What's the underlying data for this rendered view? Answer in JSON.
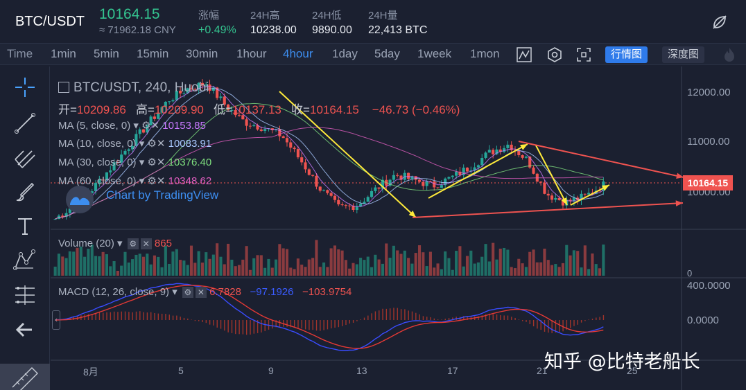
{
  "header": {
    "pair": "BTC/USDT",
    "price": "10164.15",
    "price_cny": "≈ 71962.18 CNY",
    "stats": [
      {
        "label": "涨幅",
        "value": "+0.49%"
      },
      {
        "label": "24H高",
        "value": "10238.00"
      },
      {
        "label": "24H低",
        "value": "9890.00"
      },
      {
        "label": "24H量",
        "value": "22,413 BTC"
      }
    ],
    "icon": "settings-slash-icon"
  },
  "toolbar": {
    "timeframes": [
      "Time",
      "1min",
      "5min",
      "15min",
      "30min",
      "1hour",
      "4hour",
      "1day",
      "5day",
      "1week",
      "1mon"
    ],
    "active_timeframe": "4hour",
    "icons": [
      "indicator-icon",
      "hexagon-settings-icon",
      "fullscreen-icon"
    ],
    "market_chart_label": "行情图",
    "depth_chart_label": "深度图",
    "theme_icon": "flame-icon"
  },
  "side_tools": [
    "crosshair-icon",
    "trend-line-icon",
    "fork-icon",
    "brush-icon",
    "text-icon",
    "pattern-icon",
    "measure-icon",
    "back-arrow-icon",
    "ruler-icon"
  ],
  "chart": {
    "title": "BTC/USDT, 240, Huobi",
    "ohlc": {
      "open_label": "开=",
      "open": "10209.86",
      "high_label": "高=",
      "high": "10209.90",
      "low_label": "低=",
      "low": "10137.13",
      "close_label": "收=",
      "close": "10164.15",
      "change": "−46.73 (−0.46%)"
    },
    "ma": [
      {
        "name": "MA (5, close, 0)",
        "value": "10153.85",
        "color": "#c879ff"
      },
      {
        "name": "MA (10, close, 0)",
        "value": "10083.91",
        "color": "#a9c8ff"
      },
      {
        "name": "MA (30, close, 0)",
        "value": "10376.40",
        "color": "#7fe07f"
      },
      {
        "name": "MA (60, close, 0)",
        "value": "10348.62",
        "color": "#e05ec0"
      }
    ],
    "watermark": "Chart by TradingView",
    "price_axis": [
      "12000.00",
      "11000.00",
      "10000.00"
    ],
    "current_price": "10164.15",
    "volume": {
      "name": "Volume (20)",
      "value": "865",
      "axis": [
        "0"
      ]
    },
    "macd": {
      "name": "MACD (12, 26, close, 9)",
      "values": [
        "6.7828",
        "−97.1926",
        "−103.9754"
      ],
      "axis": [
        "400.0000",
        "0.0000"
      ]
    },
    "time_axis": [
      "8月",
      "5",
      "9",
      "13",
      "17",
      "21",
      "25"
    ],
    "credit": "知乎 @比特老船长",
    "colors": {
      "up": "#26a69a",
      "down": "#ef5350",
      "annotation_yellow": "#ffeb3b",
      "annotation_red": "#ef5350"
    }
  },
  "chart_data": {
    "type": "candlestick",
    "ylim": [
      9400,
      12300
    ],
    "x_ticks": [
      "8月",
      "5",
      "9",
      "13",
      "17",
      "21",
      "25"
    ],
    "close_path": [
      9550,
      9800,
      10100,
      10500,
      10900,
      11300,
      11700,
      11900,
      12000,
      11600,
      11300,
      11200,
      11050,
      10600,
      10100,
      9750,
      9800,
      10100,
      10350,
      10250,
      10150,
      10300,
      10500,
      10750,
      10900,
      10600,
      10000,
      9850,
      9950,
      10164
    ]
  }
}
